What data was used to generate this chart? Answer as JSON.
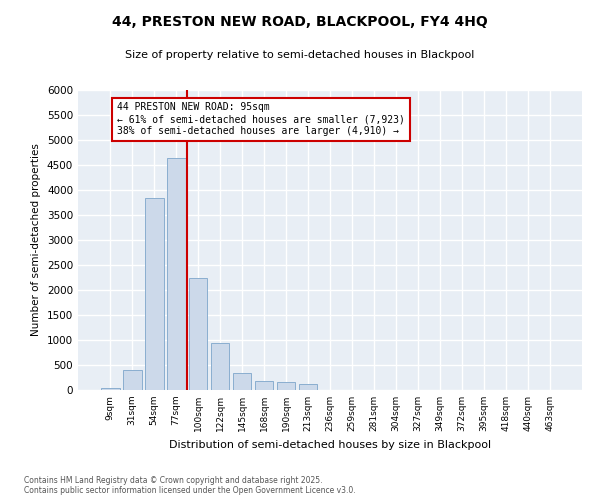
{
  "title_line1": "44, PRESTON NEW ROAD, BLACKPOOL, FY4 4HQ",
  "title_line2": "Size of property relative to semi-detached houses in Blackpool",
  "xlabel": "Distribution of semi-detached houses by size in Blackpool",
  "ylabel": "Number of semi-detached properties",
  "bar_color": "#ccd9ea",
  "bar_edge_color": "#8aaed0",
  "bg_color": "#e8eef5",
  "grid_color": "#ffffff",
  "categories": [
    "9sqm",
    "31sqm",
    "54sqm",
    "77sqm",
    "100sqm",
    "122sqm",
    "145sqm",
    "168sqm",
    "190sqm",
    "213sqm",
    "236sqm",
    "259sqm",
    "281sqm",
    "304sqm",
    "327sqm",
    "349sqm",
    "372sqm",
    "395sqm",
    "418sqm",
    "440sqm",
    "463sqm"
  ],
  "values": [
    50,
    400,
    3850,
    4650,
    2250,
    950,
    350,
    180,
    160,
    130,
    0,
    0,
    0,
    0,
    0,
    0,
    0,
    0,
    0,
    0,
    0
  ],
  "vline_pos": 4.0,
  "marker_label": "44 PRESTON NEW ROAD: 95sqm",
  "pct_smaller": "61% of semi-detached houses are smaller (7,923)",
  "pct_larger": "38% of semi-detached houses are larger (4,910)",
  "ylim": [
    0,
    6000
  ],
  "yticks": [
    0,
    500,
    1000,
    1500,
    2000,
    2500,
    3000,
    3500,
    4000,
    4500,
    5000,
    5500,
    6000
  ],
  "footnote": "Contains HM Land Registry data © Crown copyright and database right 2025.\nContains public sector information licensed under the Open Government Licence v3.0.",
  "annotation_box_facecolor": "#ffffff",
  "annotation_box_edgecolor": "#cc0000",
  "vline_color": "#cc0000"
}
